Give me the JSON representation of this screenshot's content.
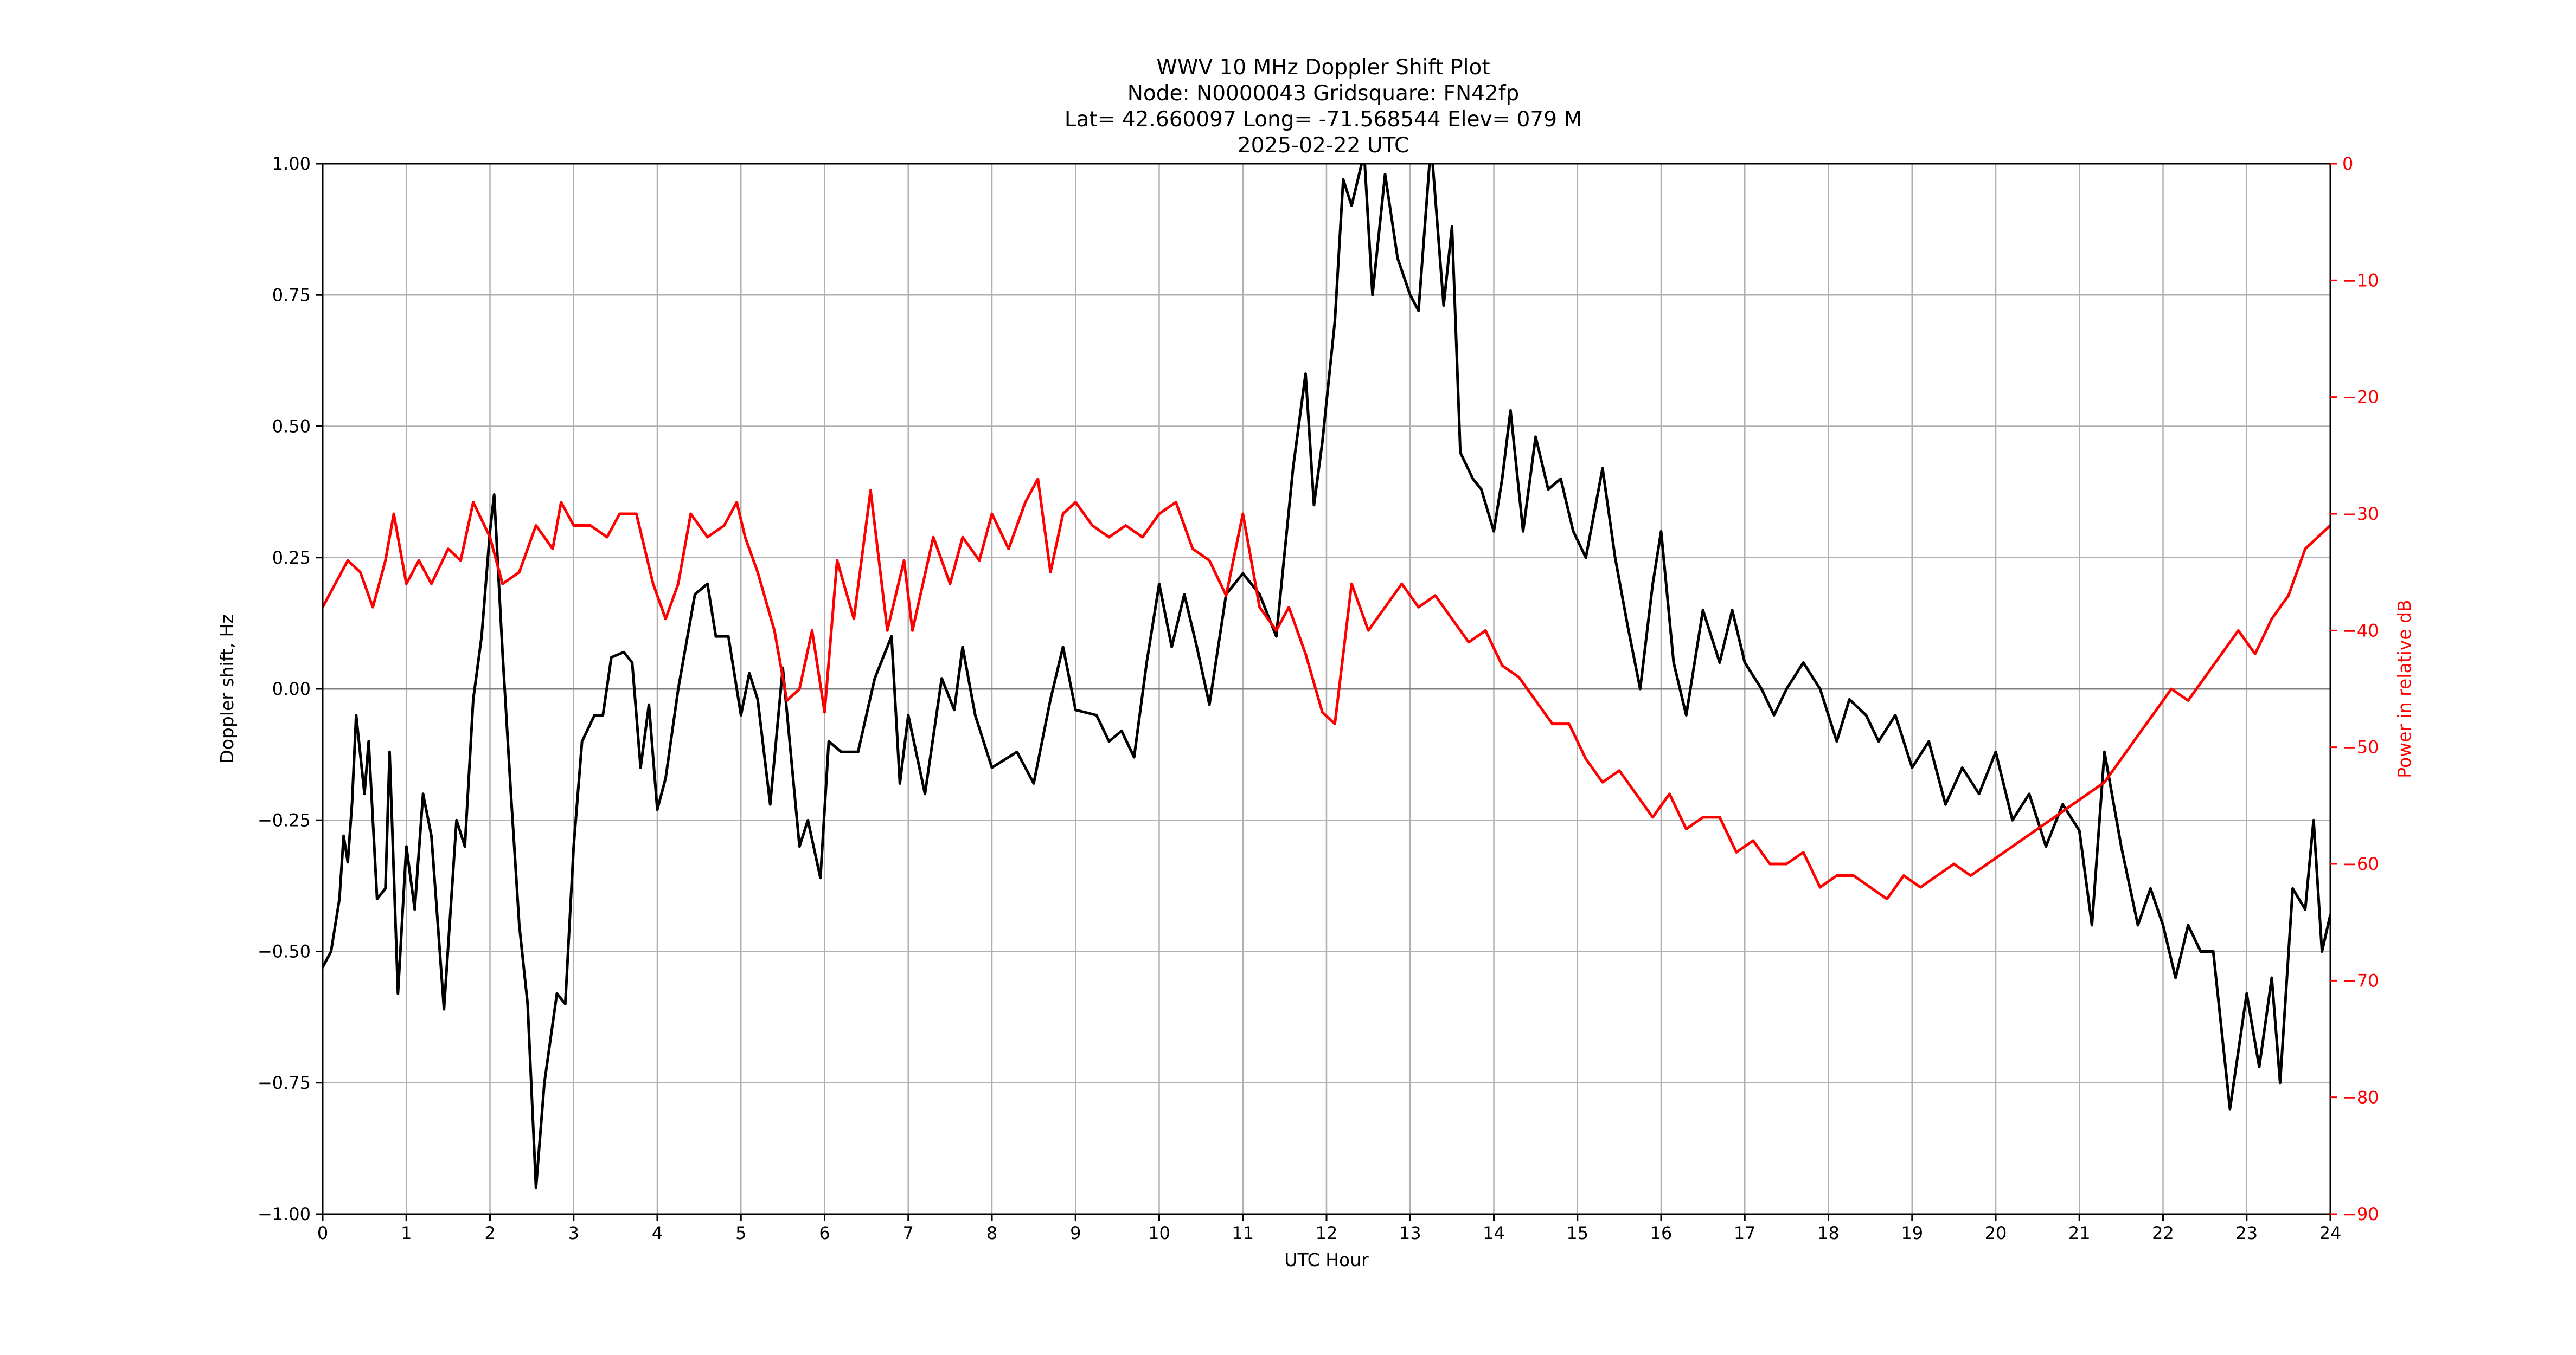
{
  "title": {
    "line1": "WWV 10 MHz Doppler Shift Plot",
    "line2": "Node:  N0000043     Gridsquare:  FN42fp",
    "line3": "Lat= 42.660097    Long= -71.568544    Elev= 079 M",
    "line4": "2025-02-22  UTC"
  },
  "colors": {
    "doppler": "#000000",
    "power": "#ff0000"
  },
  "chart_data": {
    "type": "line",
    "xlabel": "UTC Hour",
    "ylabel_left": "Doppler shift, Hz",
    "ylabel_right": "Power in relative dB",
    "xlim": [
      0,
      24
    ],
    "ylim_left": [
      -1.0,
      1.0
    ],
    "ylim_right": [
      -90,
      0
    ],
    "grid": true,
    "x_ticks": [
      "0",
      "1",
      "2",
      "3",
      "4",
      "5",
      "6",
      "7",
      "8",
      "9",
      "10",
      "11",
      "12",
      "13",
      "14",
      "15",
      "16",
      "17",
      "18",
      "19",
      "20",
      "21",
      "22",
      "23",
      "24"
    ],
    "y_left_ticks": [
      "1.00",
      "0.75",
      "0.50",
      "0.25",
      "0.00",
      "−0.25",
      "−0.50",
      "−0.75",
      "−1.00"
    ],
    "y_right_ticks": [
      "0",
      "−10",
      "−20",
      "−30",
      "−40",
      "−50",
      "−60",
      "−70",
      "−80",
      "−90"
    ],
    "series": [
      {
        "axis": "left",
        "color": "#000000",
        "points": [
          [
            0.0,
            -0.53
          ],
          [
            0.1,
            -0.5
          ],
          [
            0.2,
            -0.4
          ],
          [
            0.25,
            -0.28
          ],
          [
            0.3,
            -0.33
          ],
          [
            0.35,
            -0.22
          ],
          [
            0.4,
            -0.05
          ],
          [
            0.5,
            -0.2
          ],
          [
            0.55,
            -0.1
          ],
          [
            0.65,
            -0.4
          ],
          [
            0.75,
            -0.38
          ],
          [
            0.8,
            -0.12
          ],
          [
            0.9,
            -0.58
          ],
          [
            1.0,
            -0.3
          ],
          [
            1.1,
            -0.42
          ],
          [
            1.2,
            -0.2
          ],
          [
            1.3,
            -0.28
          ],
          [
            1.45,
            -0.61
          ],
          [
            1.6,
            -0.25
          ],
          [
            1.7,
            -0.3
          ],
          [
            1.8,
            -0.02
          ],
          [
            1.9,
            0.1
          ],
          [
            2.0,
            0.3
          ],
          [
            2.05,
            0.37
          ],
          [
            2.15,
            0.07
          ],
          [
            2.25,
            -0.2
          ],
          [
            2.35,
            -0.45
          ],
          [
            2.45,
            -0.6
          ],
          [
            2.55,
            -0.95
          ],
          [
            2.65,
            -0.75
          ],
          [
            2.8,
            -0.58
          ],
          [
            2.9,
            -0.6
          ],
          [
            3.0,
            -0.3
          ],
          [
            3.1,
            -0.1
          ],
          [
            3.25,
            -0.05
          ],
          [
            3.35,
            -0.05
          ],
          [
            3.45,
            0.06
          ],
          [
            3.6,
            0.07
          ],
          [
            3.7,
            0.05
          ],
          [
            3.8,
            -0.15
          ],
          [
            3.9,
            -0.03
          ],
          [
            4.0,
            -0.23
          ],
          [
            4.1,
            -0.17
          ],
          [
            4.25,
            0.0
          ],
          [
            4.45,
            0.18
          ],
          [
            4.6,
            0.2
          ],
          [
            4.7,
            0.1
          ],
          [
            4.85,
            0.1
          ],
          [
            5.0,
            -0.05
          ],
          [
            5.1,
            0.03
          ],
          [
            5.2,
            -0.02
          ],
          [
            5.35,
            -0.22
          ],
          [
            5.5,
            0.04
          ],
          [
            5.7,
            -0.3
          ],
          [
            5.8,
            -0.25
          ],
          [
            5.95,
            -0.36
          ],
          [
            6.05,
            -0.1
          ],
          [
            6.2,
            -0.12
          ],
          [
            6.4,
            -0.12
          ],
          [
            6.6,
            0.02
          ],
          [
            6.8,
            0.1
          ],
          [
            6.9,
            -0.18
          ],
          [
            7.0,
            -0.05
          ],
          [
            7.2,
            -0.2
          ],
          [
            7.4,
            0.02
          ],
          [
            7.55,
            -0.04
          ],
          [
            7.65,
            0.08
          ],
          [
            7.8,
            -0.05
          ],
          [
            8.0,
            -0.15
          ],
          [
            8.3,
            -0.12
          ],
          [
            8.5,
            -0.18
          ],
          [
            8.7,
            -0.02
          ],
          [
            8.85,
            0.08
          ],
          [
            9.0,
            -0.04
          ],
          [
            9.25,
            -0.05
          ],
          [
            9.4,
            -0.1
          ],
          [
            9.55,
            -0.08
          ],
          [
            9.7,
            -0.13
          ],
          [
            9.85,
            0.05
          ],
          [
            10.0,
            0.2
          ],
          [
            10.15,
            0.08
          ],
          [
            10.3,
            0.18
          ],
          [
            10.45,
            0.08
          ],
          [
            10.6,
            -0.03
          ],
          [
            10.8,
            0.18
          ],
          [
            11.0,
            0.22
          ],
          [
            11.2,
            0.18
          ],
          [
            11.4,
            0.1
          ],
          [
            11.6,
            0.42
          ],
          [
            11.75,
            0.6
          ],
          [
            11.85,
            0.35
          ],
          [
            11.95,
            0.47
          ],
          [
            12.1,
            0.7
          ],
          [
            12.2,
            0.97
          ],
          [
            12.3,
            0.92
          ],
          [
            12.45,
            1.02
          ],
          [
            12.55,
            0.75
          ],
          [
            12.7,
            0.98
          ],
          [
            12.85,
            0.82
          ],
          [
            13.0,
            0.75
          ],
          [
            13.1,
            0.72
          ],
          [
            13.25,
            1.04
          ],
          [
            13.4,
            0.73
          ],
          [
            13.5,
            0.88
          ],
          [
            13.6,
            0.45
          ],
          [
            13.75,
            0.4
          ],
          [
            13.85,
            0.38
          ],
          [
            14.0,
            0.3
          ],
          [
            14.1,
            0.4
          ],
          [
            14.2,
            0.53
          ],
          [
            14.35,
            0.3
          ],
          [
            14.5,
            0.48
          ],
          [
            14.65,
            0.38
          ],
          [
            14.8,
            0.4
          ],
          [
            14.95,
            0.3
          ],
          [
            15.1,
            0.25
          ],
          [
            15.3,
            0.42
          ],
          [
            15.45,
            0.25
          ],
          [
            15.6,
            0.12
          ],
          [
            15.75,
            0.0
          ],
          [
            15.9,
            0.2
          ],
          [
            16.0,
            0.3
          ],
          [
            16.15,
            0.05
          ],
          [
            16.3,
            -0.05
          ],
          [
            16.5,
            0.15
          ],
          [
            16.7,
            0.05
          ],
          [
            16.85,
            0.15
          ],
          [
            17.0,
            0.05
          ],
          [
            17.2,
            0.0
          ],
          [
            17.35,
            -0.05
          ],
          [
            17.5,
            0.0
          ],
          [
            17.7,
            0.05
          ],
          [
            17.9,
            0.0
          ],
          [
            18.1,
            -0.1
          ],
          [
            18.25,
            -0.02
          ],
          [
            18.45,
            -0.05
          ],
          [
            18.6,
            -0.1
          ],
          [
            18.8,
            -0.05
          ],
          [
            19.0,
            -0.15
          ],
          [
            19.2,
            -0.1
          ],
          [
            19.4,
            -0.22
          ],
          [
            19.6,
            -0.15
          ],
          [
            19.8,
            -0.2
          ],
          [
            20.0,
            -0.12
          ],
          [
            20.2,
            -0.25
          ],
          [
            20.4,
            -0.2
          ],
          [
            20.6,
            -0.3
          ],
          [
            20.8,
            -0.22
          ],
          [
            21.0,
            -0.27
          ],
          [
            21.15,
            -0.45
          ],
          [
            21.3,
            -0.12
          ],
          [
            21.5,
            -0.3
          ],
          [
            21.7,
            -0.45
          ],
          [
            21.85,
            -0.38
          ],
          [
            22.0,
            -0.45
          ],
          [
            22.15,
            -0.55
          ],
          [
            22.3,
            -0.45
          ],
          [
            22.45,
            -0.5
          ],
          [
            22.6,
            -0.5
          ],
          [
            22.8,
            -0.8
          ],
          [
            23.0,
            -0.58
          ],
          [
            23.15,
            -0.72
          ],
          [
            23.3,
            -0.55
          ],
          [
            23.4,
            -0.75
          ],
          [
            23.55,
            -0.38
          ],
          [
            23.7,
            -0.42
          ],
          [
            23.8,
            -0.25
          ],
          [
            23.9,
            -0.5
          ],
          [
            24.0,
            -0.43
          ]
        ]
      },
      {
        "axis": "right",
        "color": "#ff0000",
        "points": [
          [
            0.0,
            -38
          ],
          [
            0.15,
            -36
          ],
          [
            0.3,
            -34
          ],
          [
            0.45,
            -35
          ],
          [
            0.6,
            -38
          ],
          [
            0.75,
            -34
          ],
          [
            0.85,
            -30
          ],
          [
            1.0,
            -36
          ],
          [
            1.15,
            -34
          ],
          [
            1.3,
            -36
          ],
          [
            1.5,
            -33
          ],
          [
            1.65,
            -34
          ],
          [
            1.8,
            -29
          ],
          [
            2.0,
            -32
          ],
          [
            2.15,
            -36
          ],
          [
            2.35,
            -35
          ],
          [
            2.55,
            -31
          ],
          [
            2.75,
            -33
          ],
          [
            2.85,
            -29
          ],
          [
            3.0,
            -31
          ],
          [
            3.2,
            -31
          ],
          [
            3.4,
            -32
          ],
          [
            3.55,
            -30
          ],
          [
            3.75,
            -30
          ],
          [
            3.95,
            -36
          ],
          [
            4.1,
            -39
          ],
          [
            4.25,
            -36
          ],
          [
            4.4,
            -30
          ],
          [
            4.6,
            -32
          ],
          [
            4.8,
            -31
          ],
          [
            4.95,
            -29
          ],
          [
            5.05,
            -32
          ],
          [
            5.2,
            -35
          ],
          [
            5.4,
            -40
          ],
          [
            5.55,
            -46
          ],
          [
            5.7,
            -45
          ],
          [
            5.85,
            -40
          ],
          [
            6.0,
            -47
          ],
          [
            6.15,
            -34
          ],
          [
            6.35,
            -39
          ],
          [
            6.55,
            -28
          ],
          [
            6.75,
            -40
          ],
          [
            6.95,
            -34
          ],
          [
            7.05,
            -40
          ],
          [
            7.3,
            -32
          ],
          [
            7.5,
            -36
          ],
          [
            7.65,
            -32
          ],
          [
            7.85,
            -34
          ],
          [
            8.0,
            -30
          ],
          [
            8.2,
            -33
          ],
          [
            8.4,
            -29
          ],
          [
            8.55,
            -27
          ],
          [
            8.7,
            -35
          ],
          [
            8.85,
            -30
          ],
          [
            9.0,
            -29
          ],
          [
            9.2,
            -31
          ],
          [
            9.4,
            -32
          ],
          [
            9.6,
            -31
          ],
          [
            9.8,
            -32
          ],
          [
            10.0,
            -30
          ],
          [
            10.2,
            -29
          ],
          [
            10.4,
            -33
          ],
          [
            10.6,
            -34
          ],
          [
            10.8,
            -37
          ],
          [
            11.0,
            -30
          ],
          [
            11.2,
            -38
          ],
          [
            11.4,
            -40
          ],
          [
            11.55,
            -38
          ],
          [
            11.75,
            -42
          ],
          [
            11.95,
            -47
          ],
          [
            12.1,
            -48
          ],
          [
            12.3,
            -36
          ],
          [
            12.5,
            -40
          ],
          [
            12.7,
            -38
          ],
          [
            12.9,
            -36
          ],
          [
            13.1,
            -38
          ],
          [
            13.3,
            -37
          ],
          [
            13.5,
            -39
          ],
          [
            13.7,
            -41
          ],
          [
            13.9,
            -40
          ],
          [
            14.1,
            -43
          ],
          [
            14.3,
            -44
          ],
          [
            14.5,
            -46
          ],
          [
            14.7,
            -48
          ],
          [
            14.9,
            -48
          ],
          [
            15.1,
            -51
          ],
          [
            15.3,
            -53
          ],
          [
            15.5,
            -52
          ],
          [
            15.7,
            -54
          ],
          [
            15.9,
            -56
          ],
          [
            16.1,
            -54
          ],
          [
            16.3,
            -57
          ],
          [
            16.5,
            -56
          ],
          [
            16.7,
            -56
          ],
          [
            16.9,
            -59
          ],
          [
            17.1,
            -58
          ],
          [
            17.3,
            -60
          ],
          [
            17.5,
            -60
          ],
          [
            17.7,
            -59
          ],
          [
            17.9,
            -62
          ],
          [
            18.1,
            -61
          ],
          [
            18.3,
            -61
          ],
          [
            18.5,
            -62
          ],
          [
            18.7,
            -63
          ],
          [
            18.9,
            -61
          ],
          [
            19.1,
            -62
          ],
          [
            19.3,
            -61
          ],
          [
            19.5,
            -60
          ],
          [
            19.7,
            -61
          ],
          [
            19.9,
            -60
          ],
          [
            20.1,
            -59
          ],
          [
            20.3,
            -58
          ],
          [
            20.5,
            -57
          ],
          [
            20.7,
            -56
          ],
          [
            20.9,
            -55
          ],
          [
            21.1,
            -54
          ],
          [
            21.3,
            -53
          ],
          [
            21.5,
            -51
          ],
          [
            21.7,
            -49
          ],
          [
            21.9,
            -47
          ],
          [
            22.1,
            -45
          ],
          [
            22.3,
            -46
          ],
          [
            22.5,
            -44
          ],
          [
            22.7,
            -42
          ],
          [
            22.9,
            -40
          ],
          [
            23.1,
            -42
          ],
          [
            23.3,
            -39
          ],
          [
            23.5,
            -37
          ],
          [
            23.7,
            -33
          ],
          [
            23.85,
            -32
          ],
          [
            24.0,
            -31
          ]
        ]
      }
    ]
  }
}
